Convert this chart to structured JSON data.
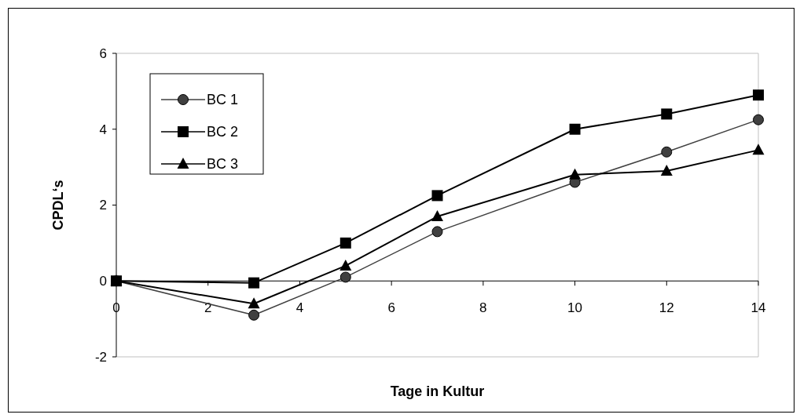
{
  "chart_data": {
    "type": "line",
    "xlabel": "Tage in Kultur",
    "ylabel": "CPDL‘s",
    "x": [
      0,
      3,
      5,
      7,
      10,
      12,
      14
    ],
    "series": [
      {
        "name": "BC 1",
        "color": "#404040",
        "marker": "circle",
        "values": [
          0,
          -0.9,
          0.1,
          1.3,
          2.6,
          3.4,
          4.25
        ]
      },
      {
        "name": "BC 2",
        "color": "#000000",
        "marker": "square",
        "values": [
          0,
          -0.05,
          1.0,
          2.25,
          4.0,
          4.4,
          4.9
        ]
      },
      {
        "name": "BC 3",
        "color": "#000000",
        "marker": "triangle",
        "values": [
          0,
          -0.6,
          0.4,
          1.7,
          2.8,
          2.9,
          3.45
        ]
      }
    ],
    "xlim": [
      0,
      14
    ],
    "xticks": [
      0,
      2,
      4,
      6,
      8,
      10,
      12,
      14
    ],
    "ylim": [
      -2,
      6
    ],
    "yticks": [
      -2,
      0,
      2,
      4,
      6
    ],
    "legend": "top left",
    "grid": false,
    "line_style": "solid"
  }
}
